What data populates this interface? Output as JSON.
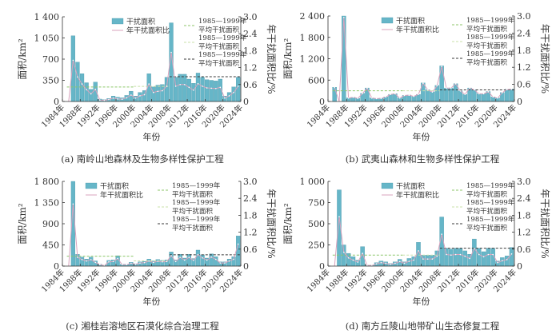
{
  "chart_data": [
    {
      "type": "bar",
      "caption": "(a) 南岭山地森林及生物多样性保护工程",
      "xlabel": "年份",
      "ylabel": "面积/km²",
      "y2label": "年干扰面积比/%",
      "x_ticks": [
        "1984年",
        "1988年",
        "1992年",
        "1996年",
        "2000年",
        "2004年",
        "2008年",
        "2012年",
        "2016年",
        "2020年",
        "2024年"
      ],
      "y_ticks": [
        "0",
        "350",
        "700",
        "1 050",
        "1 400"
      ],
      "y2_ticks": [
        "0",
        "0.6",
        "1.2",
        "1.8",
        "2.4",
        "3.0"
      ],
      "ylim": [
        0,
        1400
      ],
      "y2lim": [
        0,
        3.0
      ],
      "years": [
        1985,
        1986,
        1987,
        1988,
        1989,
        1990,
        1991,
        1992,
        1993,
        1994,
        1995,
        1996,
        1997,
        1998,
        1999,
        2000,
        2001,
        2002,
        2003,
        2004,
        2005,
        2006,
        2007,
        2008,
        2009,
        2010,
        2011,
        2012,
        2013,
        2014,
        2015,
        2016,
        2017,
        2018,
        2019,
        2020,
        2021,
        2022,
        2023
      ],
      "series": [
        {
          "name": "干扰面积",
          "type": "bar",
          "values": [
            0,
            1086,
            650,
            460,
            310,
            200,
            320,
            40,
            30,
            50,
            90,
            70,
            60,
            100,
            170,
            90,
            150,
            180,
            460,
            240,
            270,
            280,
            400,
            1300,
            400,
            450,
            450,
            370,
            300,
            470,
            400,
            360,
            350,
            340,
            370,
            90,
            150,
            240,
            400
          ]
        },
        {
          "name": "年干扰面积比",
          "type": "line",
          "axis": "right",
          "values": [
            0,
            1.46,
            0.87,
            0.62,
            0.42,
            0.27,
            0.43,
            0.05,
            0.04,
            0.07,
            0.12,
            0.09,
            0.08,
            0.13,
            0.23,
            0.12,
            0.2,
            0.24,
            0.62,
            0.32,
            0.36,
            0.38,
            0.54,
            1.74,
            0.54,
            0.6,
            0.6,
            0.5,
            0.4,
            0.63,
            0.54,
            0.48,
            0.47,
            0.46,
            0.5,
            0.12,
            0.2,
            0.32,
            0.54
          ]
        }
      ],
      "averages": [
        {
          "label1": "1985—1999年",
          "label2": "平均干扰面积",
          "from": 1985,
          "to": 2000,
          "value": 240,
          "color": "#8cc66a"
        },
        {
          "label1": "1985—1999年",
          "label2": "平均干扰面积",
          "from": 2000,
          "to": 2008,
          "value": 250,
          "color": "#c8e0a8"
        },
        {
          "label1": "1985—1999年",
          "label2": "平均干扰面积",
          "from": 2008,
          "to": 2024,
          "value": 410,
          "color": "#3a3a3a"
        }
      ]
    },
    {
      "type": "bar",
      "caption": "(b) 武夷山森林和生物多样性保护工程",
      "xlabel": "年份",
      "ylabel": "面积/km²",
      "y2label": "年干扰面积比/%",
      "x_ticks": [
        "1984年",
        "1988年",
        "1992年",
        "1996年",
        "2000年",
        "2004年",
        "2008年",
        "2012年",
        "2016年",
        "2020年",
        "2024年"
      ],
      "y_ticks": [
        "0",
        "600",
        "1 200",
        "1 800",
        "2 400"
      ],
      "y2_ticks": [
        "0",
        "0.6",
        "1.2",
        "1.8",
        "2.4",
        "3.0"
      ],
      "ylim": [
        0,
        2400
      ],
      "y2lim": [
        0,
        3.0
      ],
      "years": [
        1985,
        1986,
        1987,
        1988,
        1989,
        1990,
        1991,
        1992,
        1993,
        1994,
        1995,
        1996,
        1997,
        1998,
        1999,
        2000,
        2001,
        2002,
        2003,
        2004,
        2005,
        2006,
        2007,
        2008,
        2009,
        2010,
        2011,
        2012,
        2013,
        2014,
        2015,
        2016,
        2017,
        2018,
        2019,
        2020,
        2021,
        2022,
        2023
      ],
      "series": [
        {
          "name": "干扰面积",
          "type": "bar",
          "values": [
            400,
            0,
            2400,
            100,
            120,
            90,
            230,
            380,
            100,
            80,
            90,
            130,
            200,
            220,
            100,
            170,
            180,
            150,
            200,
            520,
            330,
            270,
            450,
            1000,
            380,
            380,
            500,
            300,
            200,
            380,
            330,
            220,
            220,
            280,
            130,
            100,
            250,
            340,
            350
          ]
        },
        {
          "name": "年干扰面积比",
          "type": "line",
          "axis": "right",
          "values": [
            0.49,
            0,
            2.95,
            0.12,
            0.15,
            0.11,
            0.28,
            0.47,
            0.12,
            0.1,
            0.11,
            0.16,
            0.25,
            0.27,
            0.12,
            0.21,
            0.22,
            0.18,
            0.25,
            0.64,
            0.41,
            0.33,
            0.55,
            1.23,
            0.47,
            0.47,
            0.62,
            0.37,
            0.25,
            0.47,
            0.41,
            0.27,
            0.27,
            0.34,
            0.16,
            0.12,
            0.31,
            0.42,
            0.43
          ]
        }
      ],
      "averages": [
        {
          "label1": "1985—1999年",
          "label2": "平均干扰面积",
          "from": 1985,
          "to": 2000,
          "value": 300,
          "color": "#8cc66a"
        },
        {
          "label1": "1985—1999年",
          "label2": "平均干扰面积",
          "from": 2000,
          "to": 2008,
          "value": 300,
          "color": "#c8e0a8"
        },
        {
          "label1": "1985—1999年",
          "label2": "平均干扰面积",
          "from": 2008,
          "to": 2024,
          "value": 325,
          "color": "#3a3a3a"
        }
      ]
    },
    {
      "type": "bar",
      "caption": "(c) 湘桂岩溶地区石漠化综合治理工程",
      "xlabel": "年份",
      "ylabel": "面积/km²",
      "y2label": "年干扰面积比/%",
      "x_ticks": [
        "1984年",
        "1988年",
        "1992年",
        "1996年",
        "2000年",
        "2004年",
        "2008年",
        "2012年",
        "2016年",
        "2020年",
        "2024年"
      ],
      "y_ticks": [
        "0",
        "450",
        "900",
        "1 350",
        "1 800"
      ],
      "y2_ticks": [
        "0",
        "0.6",
        "1.2",
        "1.8",
        "2.4",
        "3.0"
      ],
      "ylim": [
        0,
        1800
      ],
      "y2lim": [
        0,
        3.0
      ],
      "years": [
        1985,
        1986,
        1987,
        1988,
        1989,
        1990,
        1991,
        1992,
        1993,
        1994,
        1995,
        1996,
        1997,
        1998,
        1999,
        2000,
        2001,
        2002,
        2003,
        2004,
        2005,
        2006,
        2007,
        2008,
        2009,
        2010,
        2011,
        2012,
        2013,
        2014,
        2015,
        2016,
        2017,
        2018,
        2019,
        2020,
        2021,
        2022,
        2023
      ],
      "series": [
        {
          "name": "干扰面积",
          "type": "bar",
          "values": [
            0,
            1800,
            250,
            190,
            150,
            190,
            110,
            40,
            20,
            120,
            130,
            220,
            40,
            40,
            80,
            50,
            90,
            100,
            150,
            110,
            140,
            120,
            130,
            300,
            130,
            250,
            170,
            250,
            160,
            340,
            240,
            170,
            260,
            200,
            90,
            90,
            150,
            200,
            640
          ]
        },
        {
          "name": "年干扰面积比",
          "type": "line",
          "axis": "right",
          "values": [
            0,
            2.2,
            0.31,
            0.23,
            0.18,
            0.23,
            0.13,
            0.05,
            0.02,
            0.15,
            0.16,
            0.27,
            0.05,
            0.05,
            0.1,
            0.06,
            0.11,
            0.12,
            0.18,
            0.13,
            0.17,
            0.15,
            0.16,
            0.37,
            0.16,
            0.31,
            0.21,
            0.31,
            0.2,
            0.41,
            0.29,
            0.21,
            0.32,
            0.24,
            0.11,
            0.11,
            0.18,
            0.24,
            0.78
          ]
        }
      ],
      "averages": [
        {
          "label1": "1985—1999年",
          "label2": "平均干扰面积",
          "from": 1985,
          "to": 2000,
          "value": 210,
          "color": "#8cc66a"
        },
        {
          "label1": "1985—1999年",
          "label2": "平均干扰面积",
          "from": 2000,
          "to": 2008,
          "value": 110,
          "color": "#c8e0a8"
        },
        {
          "label1": "1985—1999年",
          "label2": "平均干扰面积",
          "from": 2008,
          "to": 2024,
          "value": 240,
          "color": "#3a3a3a"
        }
      ]
    },
    {
      "type": "bar",
      "caption": "(d) 南方丘陵山地带矿山生态修复工程",
      "xlabel": "年份",
      "ylabel": "面积/km²",
      "y2label": "年干扰面积比/%",
      "x_ticks": [
        "1984年",
        "1988年",
        "1992年",
        "1996年",
        "2000年",
        "2004年",
        "2008年",
        "2012年",
        "2016年",
        "2020年",
        "2024年"
      ],
      "y_ticks": [
        "0",
        "250",
        "500",
        "750",
        "1 000"
      ],
      "y2_ticks": [
        "0",
        "0.6",
        "1.2",
        "1.8",
        "2.4",
        "3.0"
      ],
      "ylim": [
        0,
        1000
      ],
      "y2lim": [
        0,
        3.0
      ],
      "years": [
        1985,
        1986,
        1987,
        1988,
        1989,
        1990,
        1991,
        1992,
        1993,
        1994,
        1995,
        1996,
        1997,
        1998,
        1999,
        2000,
        2001,
        2002,
        2003,
        2004,
        2005,
        2006,
        2007,
        2008,
        2009,
        2010,
        2011,
        2012,
        2013,
        2014,
        2015,
        2016,
        2017,
        2018,
        2019,
        2020,
        2021,
        2022,
        2023
      ],
      "series": [
        {
          "name": "干扰面积",
          "type": "bar",
          "values": [
            0,
            900,
            250,
            150,
            110,
            70,
            230,
            10,
            10,
            40,
            60,
            50,
            30,
            50,
            80,
            50,
            90,
            110,
            280,
            130,
            130,
            130,
            180,
            580,
            210,
            200,
            210,
            210,
            180,
            140,
            320,
            210,
            170,
            210,
            210,
            60,
            100,
            120,
            220
          ]
        },
        {
          "name": "年干扰面积比",
          "type": "line",
          "axis": "right",
          "values": [
            0,
            1.75,
            0.49,
            0.29,
            0.21,
            0.14,
            0.45,
            0.02,
            0.02,
            0.08,
            0.12,
            0.1,
            0.06,
            0.1,
            0.16,
            0.1,
            0.17,
            0.21,
            0.54,
            0.25,
            0.25,
            0.25,
            0.35,
            1.13,
            0.41,
            0.39,
            0.41,
            0.41,
            0.35,
            0.27,
            0.62,
            0.41,
            0.33,
            0.41,
            0.41,
            0.12,
            0.19,
            0.23,
            0.43
          ]
        }
      ],
      "averages": [
        {
          "label1": "1985—1999年",
          "label2": "平均干扰面积",
          "from": 1985,
          "to": 2000,
          "value": 130,
          "color": "#8cc66a"
        },
        {
          "label1": "1985—1999年",
          "label2": "平均干扰面积",
          "from": 2000,
          "to": 2008,
          "value": 130,
          "color": "#c8e0a8"
        },
        {
          "label1": "1985—1999年",
          "label2": "平均干扰面积",
          "from": 2008,
          "to": 2024,
          "value": 211,
          "color": "#3a3a3a"
        }
      ]
    }
  ],
  "colors": {
    "bar": "#66b6c8",
    "bar_edge": "#3f8fa3",
    "ratio_line": "#d9a3bd",
    "marker": "#ffffff",
    "axis": "#333333"
  }
}
